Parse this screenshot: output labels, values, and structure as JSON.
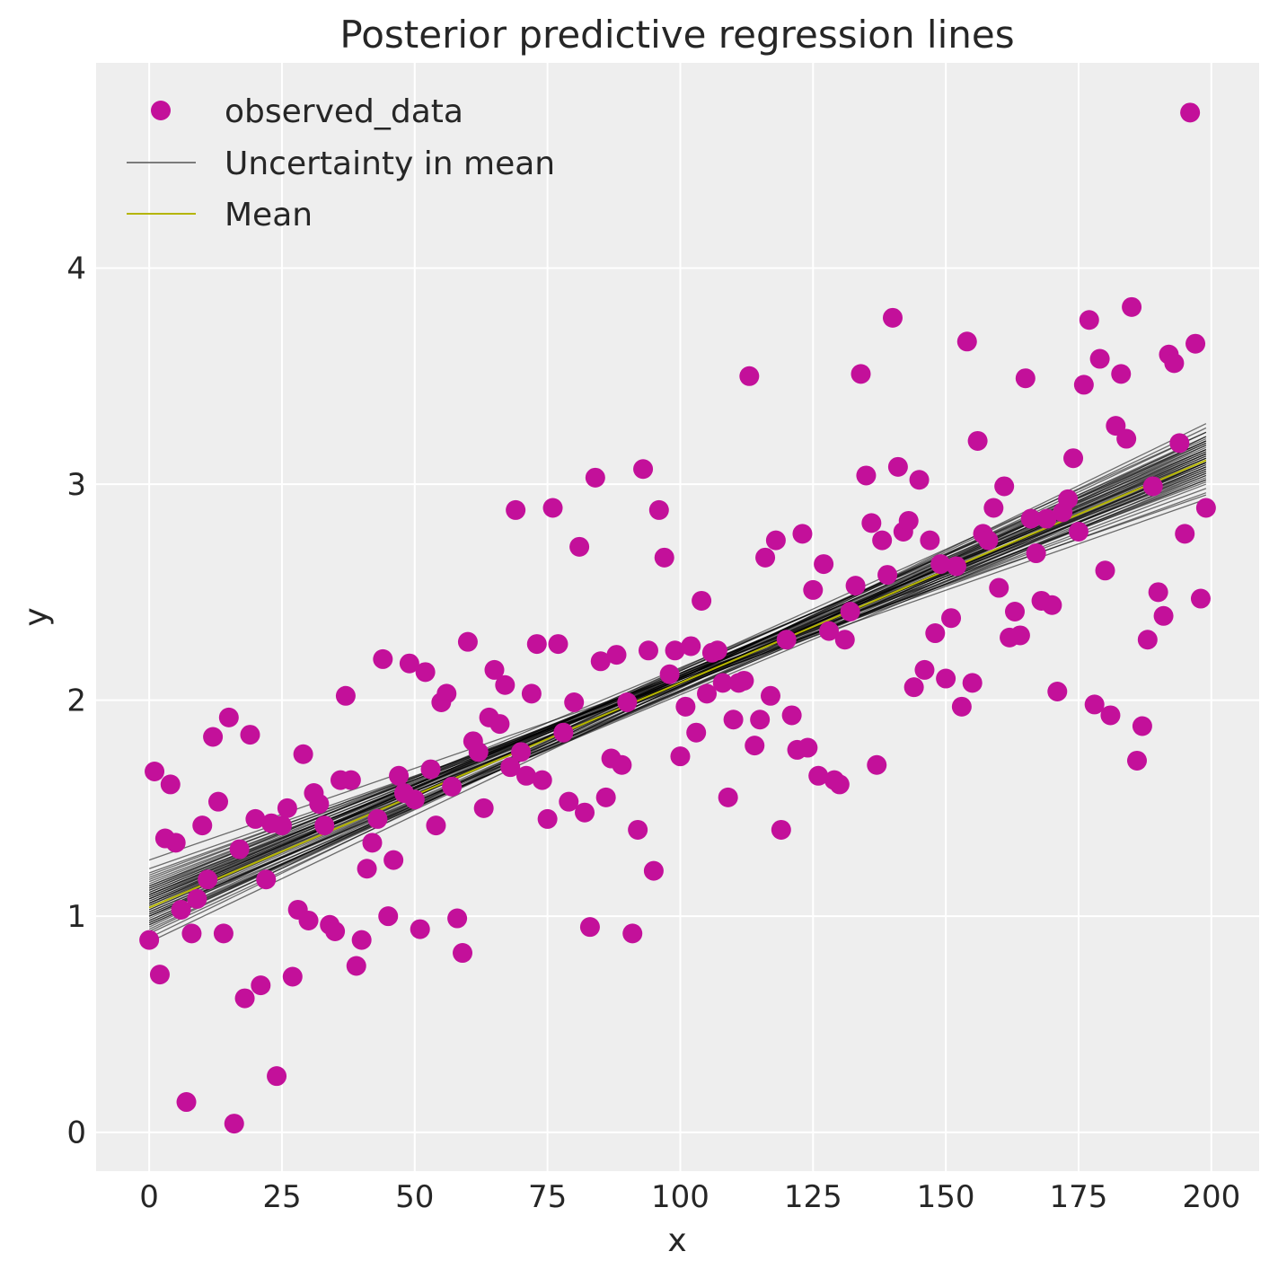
{
  "chart_data": {
    "type": "scatter",
    "title": "Posterior predictive regression lines",
    "xlabel": "x",
    "ylabel": "y",
    "xlim": [
      -10,
      209
    ],
    "ylim": [
      -0.18,
      4.95
    ],
    "xticks": [
      0,
      25,
      50,
      75,
      100,
      125,
      150,
      175,
      200
    ],
    "yticks": [
      0,
      1,
      2,
      3,
      4
    ],
    "grid": true,
    "legend_position": "top-left",
    "legend": [
      {
        "label": "observed_data",
        "kind": "marker",
        "color": "#c3109a"
      },
      {
        "label": "Uncertainty in mean",
        "kind": "line",
        "color": "#555555"
      },
      {
        "label": "Mean",
        "kind": "line",
        "color": "#b5b500"
      }
    ],
    "colors": {
      "background": "#eeeeee",
      "grid": "#ffffff",
      "observed": "#c3109a",
      "uncertainty": "#000000",
      "mean": "#b5b500"
    },
    "series": [
      {
        "name": "observed_data",
        "kind": "scatter",
        "points": [
          [
            0,
            0.89
          ],
          [
            1,
            1.67
          ],
          [
            2,
            0.73
          ],
          [
            3,
            1.36
          ],
          [
            4,
            1.61
          ],
          [
            5,
            1.34
          ],
          [
            6,
            1.03
          ],
          [
            7,
            0.14
          ],
          [
            8,
            0.92
          ],
          [
            9,
            1.08
          ],
          [
            10,
            1.42
          ],
          [
            11,
            1.17
          ],
          [
            12,
            1.83
          ],
          [
            13,
            1.53
          ],
          [
            14,
            0.92
          ],
          [
            15,
            1.92
          ],
          [
            16,
            0.04
          ],
          [
            17,
            1.31
          ],
          [
            18,
            0.62
          ],
          [
            19,
            1.84
          ],
          [
            20,
            1.45
          ],
          [
            21,
            0.68
          ],
          [
            22,
            1.17
          ],
          [
            23,
            1.43
          ],
          [
            24,
            0.26
          ],
          [
            25,
            1.42
          ],
          [
            26,
            1.5
          ],
          [
            27,
            0.72
          ],
          [
            28,
            1.03
          ],
          [
            29,
            1.75
          ],
          [
            30,
            0.98
          ],
          [
            31,
            1.57
          ],
          [
            32,
            1.52
          ],
          [
            33,
            1.42
          ],
          [
            34,
            0.96
          ],
          [
            35,
            0.93
          ],
          [
            36,
            1.63
          ],
          [
            37,
            2.02
          ],
          [
            38,
            1.63
          ],
          [
            39,
            0.77
          ],
          [
            40,
            0.89
          ],
          [
            41,
            1.22
          ],
          [
            42,
            1.34
          ],
          [
            43,
            1.45
          ],
          [
            44,
            2.19
          ],
          [
            45,
            1.0
          ],
          [
            46,
            1.26
          ],
          [
            47,
            1.65
          ],
          [
            48,
            1.57
          ],
          [
            49,
            2.17
          ],
          [
            50,
            1.54
          ],
          [
            51,
            0.94
          ],
          [
            52,
            2.13
          ],
          [
            53,
            1.68
          ],
          [
            54,
            1.42
          ],
          [
            55,
            1.99
          ],
          [
            56,
            2.03
          ],
          [
            57,
            1.6
          ],
          [
            58,
            0.99
          ],
          [
            59,
            0.83
          ],
          [
            60,
            2.27
          ],
          [
            61,
            1.81
          ],
          [
            62,
            1.76
          ],
          [
            63,
            1.5
          ],
          [
            64,
            1.92
          ],
          [
            65,
            2.14
          ],
          [
            66,
            1.89
          ],
          [
            67,
            2.07
          ],
          [
            68,
            1.69
          ],
          [
            69,
            2.88
          ],
          [
            70,
            1.76
          ],
          [
            71,
            1.65
          ],
          [
            72,
            2.03
          ],
          [
            73,
            2.26
          ],
          [
            74,
            1.63
          ],
          [
            75,
            1.45
          ],
          [
            76,
            2.89
          ],
          [
            77,
            2.26
          ],
          [
            78,
            1.85
          ],
          [
            79,
            1.53
          ],
          [
            80,
            1.99
          ],
          [
            81,
            2.71
          ],
          [
            82,
            1.48
          ],
          [
            83,
            0.95
          ],
          [
            84,
            3.03
          ],
          [
            85,
            2.18
          ],
          [
            86,
            1.55
          ],
          [
            87,
            1.73
          ],
          [
            88,
            2.21
          ],
          [
            89,
            1.7
          ],
          [
            90,
            1.99
          ],
          [
            91,
            0.92
          ],
          [
            92,
            1.4
          ],
          [
            93,
            3.07
          ],
          [
            94,
            2.23
          ],
          [
            95,
            1.21
          ],
          [
            96,
            2.88
          ],
          [
            97,
            2.66
          ],
          [
            98,
            2.12
          ],
          [
            99,
            2.23
          ],
          [
            100,
            1.74
          ],
          [
            101,
            1.97
          ],
          [
            102,
            2.25
          ],
          [
            103,
            1.85
          ],
          [
            104,
            2.46
          ],
          [
            105,
            2.03
          ],
          [
            106,
            2.22
          ],
          [
            107,
            2.23
          ],
          [
            108,
            2.08
          ],
          [
            109,
            1.55
          ],
          [
            110,
            1.91
          ],
          [
            111,
            2.08
          ],
          [
            112,
            2.09
          ],
          [
            113,
            3.5
          ],
          [
            114,
            1.79
          ],
          [
            115,
            1.91
          ],
          [
            116,
            2.66
          ],
          [
            117,
            2.02
          ],
          [
            118,
            2.74
          ],
          [
            119,
            1.4
          ],
          [
            120,
            2.28
          ],
          [
            121,
            1.93
          ],
          [
            122,
            1.77
          ],
          [
            123,
            2.77
          ],
          [
            124,
            1.78
          ],
          [
            125,
            2.51
          ],
          [
            126,
            1.65
          ],
          [
            127,
            2.63
          ],
          [
            128,
            2.32
          ],
          [
            129,
            1.63
          ],
          [
            130,
            1.61
          ],
          [
            131,
            2.28
          ],
          [
            132,
            2.41
          ],
          [
            133,
            2.53
          ],
          [
            134,
            3.51
          ],
          [
            135,
            3.04
          ],
          [
            136,
            2.82
          ],
          [
            137,
            1.7
          ],
          [
            138,
            2.74
          ],
          [
            139,
            2.58
          ],
          [
            140,
            3.77
          ],
          [
            141,
            3.08
          ],
          [
            142,
            2.78
          ],
          [
            143,
            2.83
          ],
          [
            144,
            2.06
          ],
          [
            145,
            3.02
          ],
          [
            146,
            2.14
          ],
          [
            147,
            2.74
          ],
          [
            148,
            2.31
          ],
          [
            149,
            2.63
          ],
          [
            150,
            2.1
          ],
          [
            151,
            2.38
          ],
          [
            152,
            2.62
          ],
          [
            153,
            1.97
          ],
          [
            154,
            3.66
          ],
          [
            155,
            2.08
          ],
          [
            156,
            3.2
          ],
          [
            157,
            2.77
          ],
          [
            158,
            2.74
          ],
          [
            159,
            2.89
          ],
          [
            160,
            2.52
          ],
          [
            161,
            2.99
          ],
          [
            162,
            2.29
          ],
          [
            163,
            2.41
          ],
          [
            164,
            2.3
          ],
          [
            165,
            3.49
          ],
          [
            166,
            2.84
          ],
          [
            167,
            2.68
          ],
          [
            168,
            2.46
          ],
          [
            169,
            2.84
          ],
          [
            170,
            2.44
          ],
          [
            171,
            2.04
          ],
          [
            172,
            2.87
          ],
          [
            173,
            2.93
          ],
          [
            174,
            3.12
          ],
          [
            175,
            2.78
          ],
          [
            176,
            3.46
          ],
          [
            177,
            3.76
          ],
          [
            178,
            1.98
          ],
          [
            179,
            3.58
          ],
          [
            180,
            2.6
          ],
          [
            181,
            1.93
          ],
          [
            182,
            3.27
          ],
          [
            183,
            3.51
          ],
          [
            184,
            3.21
          ],
          [
            185,
            3.82
          ],
          [
            186,
            1.72
          ],
          [
            187,
            1.88
          ],
          [
            188,
            2.28
          ],
          [
            189,
            2.99
          ],
          [
            190,
            2.5
          ],
          [
            191,
            2.39
          ],
          [
            192,
            3.6
          ],
          [
            193,
            3.56
          ],
          [
            194,
            3.19
          ],
          [
            195,
            2.77
          ],
          [
            196,
            4.72
          ],
          [
            197,
            3.65
          ],
          [
            198,
            2.47
          ],
          [
            199,
            2.89
          ]
        ]
      },
      {
        "name": "Uncertainty in mean",
        "kind": "lines",
        "x_range": [
          0,
          199
        ],
        "lines": [
          [
            1.05,
            3.1
          ],
          [
            1.08,
            3.12
          ],
          [
            1.02,
            3.14
          ],
          [
            1.1,
            3.08
          ],
          [
            0.98,
            3.16
          ],
          [
            1.12,
            3.06
          ],
          [
            1.04,
            3.18
          ],
          [
            0.96,
            3.12
          ],
          [
            1.14,
            3.04
          ],
          [
            1.0,
            3.2
          ],
          [
            1.07,
            3.09
          ],
          [
            1.03,
            3.13
          ],
          [
            1.16,
            3.02
          ],
          [
            0.94,
            3.18
          ],
          [
            1.09,
            3.15
          ],
          [
            1.01,
            3.07
          ],
          [
            1.11,
            3.11
          ],
          [
            0.99,
            3.22
          ],
          [
            1.13,
            3.0
          ],
          [
            1.06,
            3.17
          ],
          [
            0.97,
            3.1
          ],
          [
            1.15,
            3.07
          ],
          [
            1.02,
            3.05
          ],
          [
            1.08,
            3.19
          ],
          [
            0.95,
            3.24
          ],
          [
            1.18,
            2.98
          ],
          [
            1.04,
            3.11
          ],
          [
            1.1,
            3.14
          ],
          [
            0.92,
            3.2
          ],
          [
            1.2,
            2.96
          ],
          [
            1.06,
            3.08
          ],
          [
            1.0,
            3.15
          ],
          [
            1.12,
            3.12
          ],
          [
            0.98,
            3.08
          ],
          [
            1.05,
            3.21
          ],
          [
            1.09,
            3.03
          ],
          [
            0.93,
            3.26
          ],
          [
            1.17,
            3.05
          ],
          [
            1.03,
            3.16
          ],
          [
            1.11,
            3.09
          ],
          [
            0.9,
            3.28
          ],
          [
            1.22,
            2.93
          ],
          [
            1.07,
            3.13
          ],
          [
            1.01,
            3.1
          ],
          [
            1.14,
            3.1
          ],
          [
            0.96,
            3.19
          ],
          [
            1.26,
            2.95
          ],
          [
            0.88,
            3.22
          ],
          [
            1.08,
            3.06
          ],
          [
            1.04,
            3.24
          ],
          [
            1.19,
            3.01
          ],
          [
            0.97,
            3.14
          ],
          [
            1.13,
            3.16
          ],
          [
            1.0,
            3.04
          ],
          [
            1.06,
            3.2
          ],
          [
            1.1,
            3.02
          ]
        ]
      },
      {
        "name": "Mean",
        "kind": "line",
        "points": [
          [
            0,
            1.04
          ],
          [
            199,
            3.11
          ]
        ]
      }
    ]
  }
}
